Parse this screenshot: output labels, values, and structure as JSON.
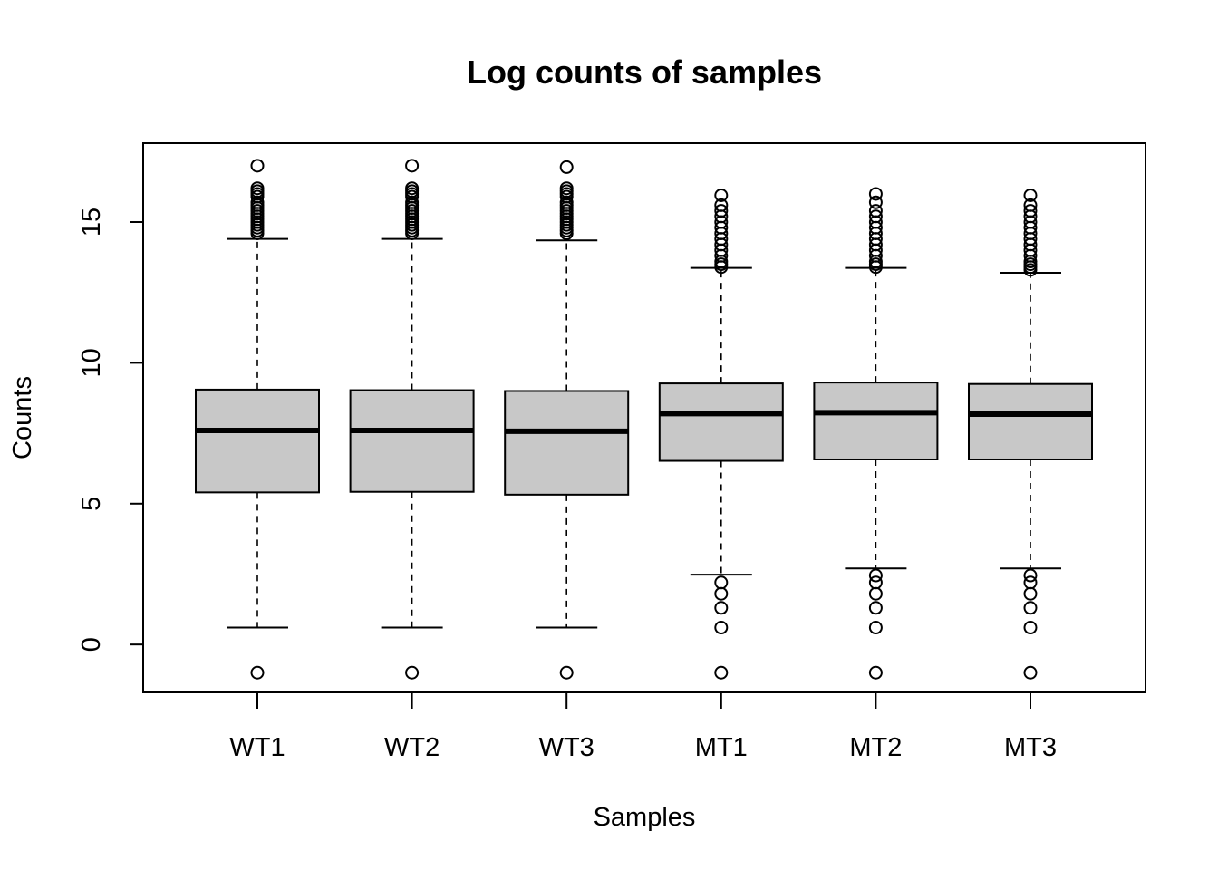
{
  "chart_data": {
    "type": "boxplot",
    "title": "Log counts of samples",
    "xlabel": "Samples",
    "ylabel": "Counts",
    "ylim": [
      -1.7,
      17.8
    ],
    "yticks": [
      0,
      5,
      10,
      15
    ],
    "grid": false,
    "legend": "none",
    "box_fill": "#c8c8c8",
    "outlier_marker": "open-circle",
    "categories": [
      "WT1",
      "WT2",
      "WT3",
      "MT1",
      "MT2",
      "MT3"
    ],
    "series": [
      {
        "label": "WT1",
        "q1": 5.4,
        "median": 7.6,
        "q3": 9.05,
        "whisker_low": 0.6,
        "whisker_high": 14.4,
        "outliers": [
          -1.0,
          14.6,
          14.7,
          14.8,
          14.9,
          15.0,
          15.1,
          15.2,
          15.3,
          15.4,
          15.5,
          15.6,
          15.7,
          15.9,
          16.0,
          16.1,
          16.2,
          17.0
        ]
      },
      {
        "label": "WT2",
        "q1": 5.42,
        "median": 7.6,
        "q3": 9.03,
        "whisker_low": 0.6,
        "whisker_high": 14.4,
        "outliers": [
          -1.0,
          14.6,
          14.7,
          14.8,
          14.9,
          15.0,
          15.1,
          15.2,
          15.3,
          15.4,
          15.5,
          15.6,
          15.7,
          15.9,
          16.0,
          16.1,
          16.2,
          17.0
        ]
      },
      {
        "label": "WT3",
        "q1": 5.32,
        "median": 7.57,
        "q3": 9.0,
        "whisker_low": 0.6,
        "whisker_high": 14.35,
        "outliers": [
          -1.0,
          14.6,
          14.7,
          14.8,
          14.9,
          15.0,
          15.1,
          15.2,
          15.3,
          15.4,
          15.5,
          15.6,
          15.7,
          15.9,
          16.0,
          16.1,
          16.2,
          16.95
        ]
      },
      {
        "label": "MT1",
        "q1": 6.52,
        "median": 8.2,
        "q3": 9.27,
        "whisker_low": 2.48,
        "whisker_high": 13.37,
        "outliers": [
          -1.0,
          0.6,
          1.3,
          1.8,
          2.2,
          13.4,
          13.5,
          13.6,
          13.8,
          14.0,
          14.2,
          14.4,
          14.6,
          14.8,
          15.0,
          15.2,
          15.4,
          15.6,
          15.95
        ]
      },
      {
        "label": "MT2",
        "q1": 6.57,
        "median": 8.23,
        "q3": 9.3,
        "whisker_low": 2.7,
        "whisker_high": 13.37,
        "outliers": [
          -1.0,
          0.6,
          1.3,
          1.8,
          2.2,
          2.45,
          13.4,
          13.5,
          13.6,
          13.8,
          14.0,
          14.2,
          14.4,
          14.6,
          14.8,
          15.0,
          15.2,
          15.4,
          15.7,
          16.0
        ]
      },
      {
        "label": "MT3",
        "q1": 6.57,
        "median": 8.18,
        "q3": 9.25,
        "whisker_low": 2.7,
        "whisker_high": 13.2,
        "outliers": [
          -1.0,
          0.6,
          1.3,
          1.8,
          2.2,
          2.45,
          13.3,
          13.4,
          13.5,
          13.6,
          13.8,
          14.0,
          14.2,
          14.4,
          14.6,
          14.8,
          15.0,
          15.2,
          15.4,
          15.6,
          15.95
        ]
      }
    ]
  }
}
